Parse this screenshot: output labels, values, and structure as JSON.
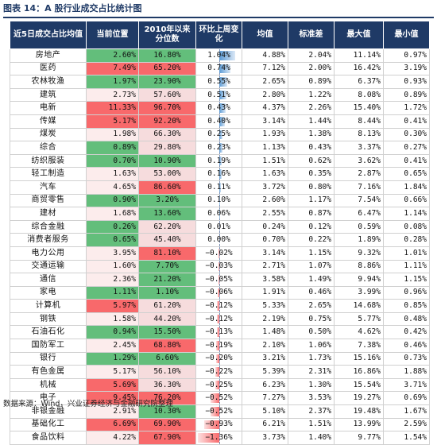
{
  "title": "图表 14：A 股行业成交占比统计图",
  "headers": [
    "近5日成交占比均值",
    "当前位置",
    "2010年以来分位数",
    "环比上周变化",
    "均值",
    "标准差",
    "最大值",
    "最小值"
  ],
  "source": "数据来源：Wind，兴业证券经济与金融研究院整理",
  "colors": {
    "header": "#1f3a66",
    "red": "#f8696b",
    "green": "#63be7b",
    "bar_pos": "#5b9bd5",
    "bar_neg": "#f8696b"
  },
  "rows": [
    {
      "name": "房地产",
      "cur": "2.60%",
      "pct": "16.80%",
      "chg": "1.04%",
      "chg_v": 1.04,
      "mean": "4.88%",
      "std": "2.04%",
      "max": "11.14%",
      "min": "0.97%",
      "cur_h": "green",
      "pct_h": "green"
    },
    {
      "name": "医药",
      "cur": "7.49%",
      "pct": "65.20%",
      "chg": "0.74%",
      "chg_v": 0.74,
      "mean": "7.12%",
      "std": "2.00%",
      "max": "16.42%",
      "min": "3.19%",
      "cur_h": "red",
      "pct_h": "red"
    },
    {
      "name": "农林牧渔",
      "cur": "1.97%",
      "pct": "23.90%",
      "chg": "0.55%",
      "chg_v": 0.55,
      "mean": "2.65%",
      "std": "0.89%",
      "max": "6.37%",
      "min": "0.93%",
      "cur_h": "green",
      "pct_h": "green"
    },
    {
      "name": "建筑",
      "cur": "2.73%",
      "pct": "57.60%",
      "chg": "0.51%",
      "chg_v": 0.51,
      "mean": "2.80%",
      "std": "1.22%",
      "max": "8.08%",
      "min": "0.89%",
      "cur_h": "light",
      "pct_h": "light"
    },
    {
      "name": "电新",
      "cur": "11.33%",
      "pct": "96.70%",
      "chg": "0.43%",
      "chg_v": 0.43,
      "mean": "4.37%",
      "std": "2.26%",
      "max": "15.40%",
      "min": "1.72%",
      "cur_h": "red",
      "pct_h": "red"
    },
    {
      "name": "传媒",
      "cur": "5.17%",
      "pct": "92.20%",
      "chg": "0.40%",
      "chg_v": 0.4,
      "mean": "3.14%",
      "std": "1.44%",
      "max": "8.44%",
      "min": "0.41%",
      "cur_h": "red",
      "pct_h": "red"
    },
    {
      "name": "煤炭",
      "cur": "1.98%",
      "pct": "66.30%",
      "chg": "0.25%",
      "chg_v": 0.25,
      "mean": "1.93%",
      "std": "1.38%",
      "max": "8.13%",
      "min": "0.30%",
      "cur_h": "light",
      "pct_h": "light"
    },
    {
      "name": "综合",
      "cur": "0.89%",
      "pct": "29.80%",
      "chg": "0.23%",
      "chg_v": 0.23,
      "mean": "1.13%",
      "std": "0.43%",
      "max": "3.37%",
      "min": "0.27%",
      "cur_h": "green",
      "pct_h": "light"
    },
    {
      "name": "纺织服装",
      "cur": "0.70%",
      "pct": "10.90%",
      "chg": "0.19%",
      "chg_v": 0.19,
      "mean": "1.51%",
      "std": "0.62%",
      "max": "3.62%",
      "min": "0.41%",
      "cur_h": "green",
      "pct_h": "green"
    },
    {
      "name": "轻工制造",
      "cur": "1.63%",
      "pct": "53.00%",
      "chg": "0.16%",
      "chg_v": 0.16,
      "mean": "1.63%",
      "std": "0.35%",
      "max": "2.87%",
      "min": "0.65%",
      "cur_h": "light",
      "pct_h": "light"
    },
    {
      "name": "汽车",
      "cur": "4.65%",
      "pct": "86.60%",
      "chg": "0.11%",
      "chg_v": 0.11,
      "mean": "3.72%",
      "std": "0.80%",
      "max": "7.16%",
      "min": "1.84%",
      "cur_h": "light",
      "pct_h": "red"
    },
    {
      "name": "商贸零售",
      "cur": "0.90%",
      "pct": "3.20%",
      "chg": "0.10%",
      "chg_v": 0.1,
      "mean": "2.60%",
      "std": "1.17%",
      "max": "7.54%",
      "min": "0.66%",
      "cur_h": "green",
      "pct_h": "green"
    },
    {
      "name": "建材",
      "cur": "1.68%",
      "pct": "13.60%",
      "chg": "0.06%",
      "chg_v": 0.06,
      "mean": "2.55%",
      "std": "0.87%",
      "max": "6.47%",
      "min": "1.14%",
      "cur_h": "light",
      "pct_h": "green"
    },
    {
      "name": "综合金融",
      "cur": "0.26%",
      "pct": "62.20%",
      "chg": "0.01%",
      "chg_v": 0.01,
      "mean": "0.24%",
      "std": "0.12%",
      "max": "0.59%",
      "min": "0.08%",
      "cur_h": "green",
      "pct_h": "light"
    },
    {
      "name": "消费者服务",
      "cur": "0.65%",
      "pct": "45.40%",
      "chg": "0.00%",
      "chg_v": 0.0,
      "mean": "0.70%",
      "std": "0.22%",
      "max": "1.89%",
      "min": "0.28%",
      "cur_h": "green",
      "pct_h": "light"
    },
    {
      "name": "电力公用",
      "cur": "3.95%",
      "pct": "81.10%",
      "chg": "−0.02%",
      "chg_v": -0.02,
      "mean": "3.14%",
      "std": "1.15%",
      "max": "9.32%",
      "min": "1.01%",
      "cur_h": "light",
      "pct_h": "red"
    },
    {
      "name": "交通运输",
      "cur": "1.60%",
      "pct": "7.70%",
      "chg": "−0.03%",
      "chg_v": -0.03,
      "mean": "2.71%",
      "std": "1.07%",
      "max": "8.86%",
      "min": "1.11%",
      "cur_h": "light",
      "pct_h": "green"
    },
    {
      "name": "通信",
      "cur": "2.36%",
      "pct": "21.20%",
      "chg": "−0.05%",
      "chg_v": -0.05,
      "mean": "3.58%",
      "std": "1.49%",
      "max": "9.94%",
      "min": "1.15%",
      "cur_h": "light",
      "pct_h": "green"
    },
    {
      "name": "家电",
      "cur": "1.11%",
      "pct": "1.10%",
      "chg": "−0.06%",
      "chg_v": -0.06,
      "mean": "1.91%",
      "std": "0.46%",
      "max": "3.99%",
      "min": "0.96%",
      "cur_h": "green",
      "pct_h": "green"
    },
    {
      "name": "计算机",
      "cur": "5.97%",
      "pct": "61.20%",
      "chg": "−0.12%",
      "chg_v": -0.12,
      "mean": "5.33%",
      "std": "2.65%",
      "max": "14.68%",
      "min": "0.85%",
      "cur_h": "red",
      "pct_h": "light"
    },
    {
      "name": "钢铁",
      "cur": "1.58%",
      "pct": "44.20%",
      "chg": "−0.12%",
      "chg_v": -0.12,
      "mean": "2.19%",
      "std": "0.75%",
      "max": "5.77%",
      "min": "0.48%",
      "cur_h": "light",
      "pct_h": "light"
    },
    {
      "name": "石油石化",
      "cur": "0.94%",
      "pct": "15.50%",
      "chg": "−0.13%",
      "chg_v": -0.13,
      "mean": "1.48%",
      "std": "0.50%",
      "max": "4.62%",
      "min": "0.42%",
      "cur_h": "green",
      "pct_h": "green"
    },
    {
      "name": "国防军工",
      "cur": "2.45%",
      "pct": "68.80%",
      "chg": "−0.19%",
      "chg_v": -0.19,
      "mean": "2.10%",
      "std": "1.06%",
      "max": "7.38%",
      "min": "0.46%",
      "cur_h": "light",
      "pct_h": "red"
    },
    {
      "name": "银行",
      "cur": "1.29%",
      "pct": "6.60%",
      "chg": "−0.20%",
      "chg_v": -0.2,
      "mean": "3.21%",
      "std": "1.73%",
      "max": "15.16%",
      "min": "0.73%",
      "cur_h": "green",
      "pct_h": "green"
    },
    {
      "name": "有色金属",
      "cur": "5.17%",
      "pct": "56.10%",
      "chg": "−0.22%",
      "chg_v": -0.22,
      "mean": "5.39%",
      "std": "2.31%",
      "max": "16.86%",
      "min": "1.88%",
      "cur_h": "light",
      "pct_h": "light"
    },
    {
      "name": "机械",
      "cur": "5.69%",
      "pct": "36.30%",
      "chg": "−0.25%",
      "chg_v": -0.25,
      "mean": "6.23%",
      "std": "1.30%",
      "max": "15.54%",
      "min": "3.71%",
      "cur_h": "red",
      "pct_h": "light"
    },
    {
      "name": "电子",
      "cur": "9.45%",
      "pct": "76.20%",
      "chg": "−0.52%",
      "chg_v": -0.52,
      "mean": "7.27%",
      "std": "3.53%",
      "max": "19.27%",
      "min": "0.69%",
      "cur_h": "red",
      "pct_h": "red"
    },
    {
      "name": "非银金融",
      "cur": "2.91%",
      "pct": "10.30%",
      "chg": "−0.52%",
      "chg_v": -0.52,
      "mean": "5.10%",
      "std": "2.37%",
      "max": "19.48%",
      "min": "1.67%",
      "cur_h": "light",
      "pct_h": "green"
    },
    {
      "name": "基础化工",
      "cur": "6.69%",
      "pct": "69.90%",
      "chg": "−0.93%",
      "chg_v": -0.93,
      "mean": "6.21%",
      "std": "1.51%",
      "max": "13.99%",
      "min": "2.59%",
      "cur_h": "red",
      "pct_h": "red"
    },
    {
      "name": "食品饮料",
      "cur": "4.22%",
      "pct": "67.90%",
      "chg": "−1.36%",
      "chg_v": -1.36,
      "mean": "3.73%",
      "std": "1.40%",
      "max": "9.77%",
      "min": "1.54%",
      "cur_h": "light",
      "pct_h": "red"
    }
  ]
}
